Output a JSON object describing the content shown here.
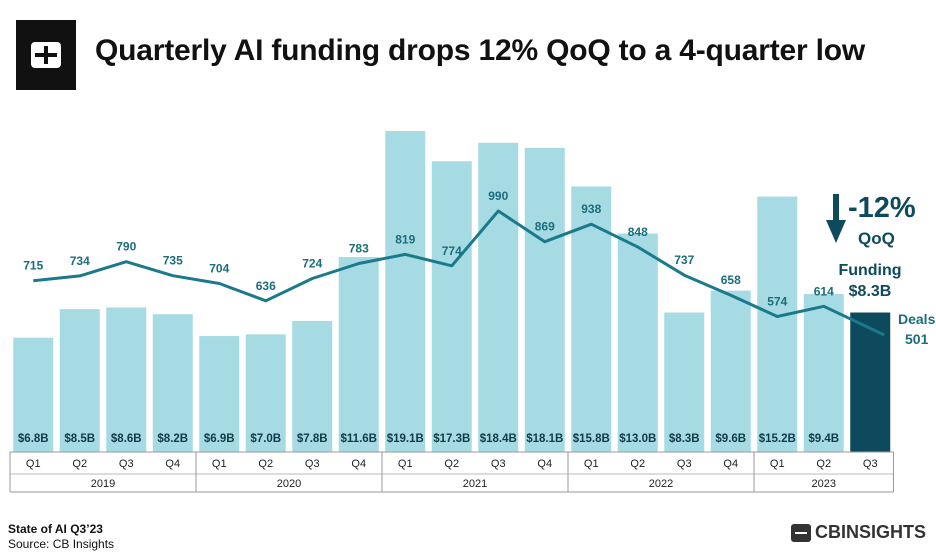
{
  "header": {
    "title": "Quarterly AI funding drops 12% QoQ to a 4-quarter low"
  },
  "footer": {
    "report": "State of AI Q3’23",
    "source": "Source: CB Insights",
    "brand": "CBINSIGHTS"
  },
  "colors": {
    "bar": "#a6dbe3",
    "bar_highlight": "#0e4a5e",
    "line": "#1a7a8c",
    "text_dark": "#11394a",
    "text_line": "#1b6d7c"
  },
  "chart_data": {
    "type": "bar",
    "title": "Quarterly AI funding drops 12% QoQ to a 4-quarter low",
    "categories": [
      "Q1",
      "Q2",
      "Q3",
      "Q4",
      "Q1",
      "Q2",
      "Q3",
      "Q4",
      "Q1",
      "Q2",
      "Q3",
      "Q4",
      "Q1",
      "Q2",
      "Q3",
      "Q4",
      "Q1",
      "Q2",
      "Q3"
    ],
    "years": [
      {
        "label": "2019",
        "count": 4
      },
      {
        "label": "2020",
        "count": 4
      },
      {
        "label": "2021",
        "count": 4
      },
      {
        "label": "2022",
        "count": 4
      },
      {
        "label": "2023",
        "count": 3
      }
    ],
    "funding": [
      6.8,
      8.5,
      8.6,
      8.2,
      6.9,
      7.0,
      7.8,
      11.6,
      19.1,
      17.3,
      18.4,
      18.1,
      15.8,
      13.0,
      8.3,
      9.6,
      15.2,
      9.4,
      8.3
    ],
    "funding_labels": [
      "$6.8B",
      "$8.5B",
      "$8.6B",
      "$8.2B",
      "$6.9B",
      "$7.0B",
      "$7.8B",
      "$11.6B",
      "$19.1B",
      "$17.3B",
      "$18.4B",
      "$18.1B",
      "$15.8B",
      "$13.0B",
      "$8.3B",
      "$9.6B",
      "$15.2B",
      "$9.4B",
      ""
    ],
    "deals": [
      715,
      734,
      790,
      735,
      704,
      636,
      724,
      783,
      819,
      774,
      990,
      869,
      938,
      848,
      737,
      658,
      574,
      614,
      501
    ],
    "deal_labels": [
      "715",
      "734",
      "790",
      "735",
      "704",
      "636",
      "724",
      "783",
      "819",
      "774",
      "990",
      "869",
      "938",
      "848",
      "737",
      "658",
      "574",
      "614",
      ""
    ],
    "ylim_funding": [
      0,
      20
    ],
    "ylim_deals": [
      0,
      1200
    ],
    "series": [
      {
        "name": "Funding ($B)",
        "kind": "bar"
      },
      {
        "name": "Deals",
        "kind": "line"
      }
    ],
    "annotation": {
      "change": "-12%",
      "change_sub": "QoQ",
      "funding_title": "Funding",
      "funding_value": "$8.3B",
      "deals_title": "Deals",
      "deals_value": "501"
    }
  }
}
